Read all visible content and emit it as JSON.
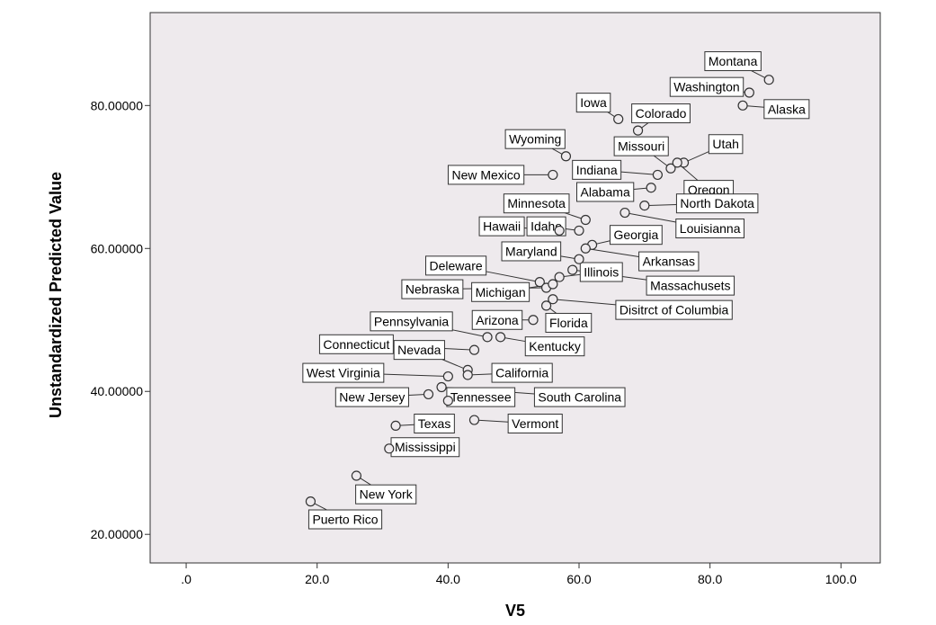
{
  "chart_data": {
    "type": "scatter",
    "xlabel": "V5",
    "ylabel": "Unstandardized Predicted Value",
    "xlim": [
      -5.5,
      106.0
    ],
    "ylim": [
      16.0,
      93.0
    ],
    "x_ticks": [
      0,
      20,
      40,
      60,
      80,
      100
    ],
    "x_tick_labels": [
      ".0",
      "20.0",
      "40.0",
      "60.0",
      "80.0",
      "100.0"
    ],
    "y_ticks": [
      20,
      40,
      60,
      80
    ],
    "y_tick_labels": [
      "20.00000",
      "40.00000",
      "60.00000",
      "80.00000"
    ],
    "grid": false,
    "background": "#eeeaed",
    "marker_fill": "#eeeaed",
    "marker_stroke": "#333333",
    "points": [
      {
        "name": "Montana",
        "x": 89,
        "y": 83.6,
        "lx": 83.5,
        "ly": 86.2
      },
      {
        "name": "Washington",
        "x": 86,
        "y": 81.8,
        "lx": 79.5,
        "ly": 82.6
      },
      {
        "name": "Alaska",
        "x": 85,
        "y": 80.0,
        "lx": 91.7,
        "ly": 79.5
      },
      {
        "name": "Iowa",
        "x": 66,
        "y": 78.1,
        "lx": 62.2,
        "ly": 80.4
      },
      {
        "name": "Colorado",
        "x": 69,
        "y": 76.5,
        "lx": 72.5,
        "ly": 78.9
      },
      {
        "name": "Wyoming",
        "x": 58,
        "y": 72.9,
        "lx": 53.3,
        "ly": 75.3
      },
      {
        "name": "Missouri",
        "x": 74,
        "y": 71.2,
        "lx": 69.5,
        "ly": 74.3
      },
      {
        "name": "Utah",
        "x": 76,
        "y": 72.0,
        "lx": 82.4,
        "ly": 74.6
      },
      {
        "name": "New Mexico",
        "x": 56,
        "y": 70.3,
        "lx": 45.8,
        "ly": 70.3
      },
      {
        "name": "Indiana",
        "x": 72,
        "y": 70.3,
        "lx": 62.7,
        "ly": 71.0
      },
      {
        "name": "Oregon",
        "x": 75,
        "y": 72.0,
        "lx": 79.8,
        "ly": 68.2
      },
      {
        "name": "Alabama",
        "x": 71,
        "y": 68.5,
        "lx": 64.0,
        "ly": 67.9
      },
      {
        "name": "North Dakota",
        "x": 70,
        "y": 66.0,
        "lx": 81.1,
        "ly": 66.3
      },
      {
        "name": "Minnesota",
        "x": 61,
        "y": 64.0,
        "lx": 53.5,
        "ly": 66.3
      },
      {
        "name": "Louisianna",
        "x": 67,
        "y": 65.0,
        "lx": 80.0,
        "ly": 62.8
      },
      {
        "name": "Hawaii",
        "x": 57,
        "y": 62.5,
        "lx": 48.2,
        "ly": 63.1
      },
      {
        "name": "Idaho",
        "x": 60,
        "y": 62.5,
        "lx": 55.0,
        "ly": 63.1
      },
      {
        "name": "Georgia",
        "x": 62,
        "y": 60.5,
        "lx": 68.7,
        "ly": 61.9
      },
      {
        "name": "Maryland",
        "x": 60,
        "y": 58.5,
        "lx": 52.7,
        "ly": 59.6
      },
      {
        "name": "Arkansas",
        "x": 61,
        "y": 60.0,
        "lx": 73.7,
        "ly": 58.2
      },
      {
        "name": "Deleware",
        "x": 54,
        "y": 55.3,
        "lx": 41.2,
        "ly": 57.6
      },
      {
        "name": "Illinois",
        "x": 57,
        "y": 56.0,
        "lx": 63.4,
        "ly": 56.7
      },
      {
        "name": "Massachusets",
        "x": 59,
        "y": 57.0,
        "lx": 77.0,
        "ly": 54.8
      },
      {
        "name": "Nebraska",
        "x": 55,
        "y": 54.5,
        "lx": 37.6,
        "ly": 54.3
      },
      {
        "name": "Michigan",
        "x": 56,
        "y": 55.0,
        "lx": 48.0,
        "ly": 53.9
      },
      {
        "name": "Disitrct of Columbia",
        "x": 56,
        "y": 52.9,
        "lx": 74.5,
        "ly": 51.4
      },
      {
        "name": "Arizona",
        "x": 53,
        "y": 50.0,
        "lx": 47.5,
        "ly": 50.0
      },
      {
        "name": "Florida",
        "x": 55,
        "y": 52.0,
        "lx": 58.4,
        "ly": 49.6
      },
      {
        "name": "Pennsylvania",
        "x": 46,
        "y": 47.6,
        "lx": 34.4,
        "ly": 49.8
      },
      {
        "name": "Kentucky",
        "x": 48,
        "y": 47.6,
        "lx": 56.3,
        "ly": 46.3
      },
      {
        "name": "Connecticut",
        "x": 44,
        "y": 45.8,
        "lx": 26.0,
        "ly": 46.6
      },
      {
        "name": "Nevada",
        "x": 43,
        "y": 43.0,
        "lx": 35.6,
        "ly": 45.8
      },
      {
        "name": "California",
        "x": 43,
        "y": 42.3,
        "lx": 51.3,
        "ly": 42.6
      },
      {
        "name": "West Virginia",
        "x": 40,
        "y": 42.1,
        "lx": 24.0,
        "ly": 42.6
      },
      {
        "name": "New Jersey",
        "x": 37,
        "y": 39.6,
        "lx": 28.4,
        "ly": 39.2
      },
      {
        "name": "Tennessee",
        "x": 40,
        "y": 38.7,
        "lx": 45.0,
        "ly": 39.2
      },
      {
        "name": "South Carolina",
        "x": 39,
        "y": 40.6,
        "lx": 60.1,
        "ly": 39.2
      },
      {
        "name": "Texas",
        "x": 32,
        "y": 35.2,
        "lx": 37.9,
        "ly": 35.5
      },
      {
        "name": "Vermont",
        "x": 44,
        "y": 36.0,
        "lx": 53.3,
        "ly": 35.5
      },
      {
        "name": "Mississippi",
        "x": 31,
        "y": 32.0,
        "lx": 36.5,
        "ly": 32.2
      },
      {
        "name": "New York",
        "x": 26,
        "y": 28.2,
        "lx": 30.5,
        "ly": 25.6
      },
      {
        "name": "Puerto Rico",
        "x": 19,
        "y": 24.6,
        "lx": 24.3,
        "ly": 22.1
      }
    ]
  }
}
